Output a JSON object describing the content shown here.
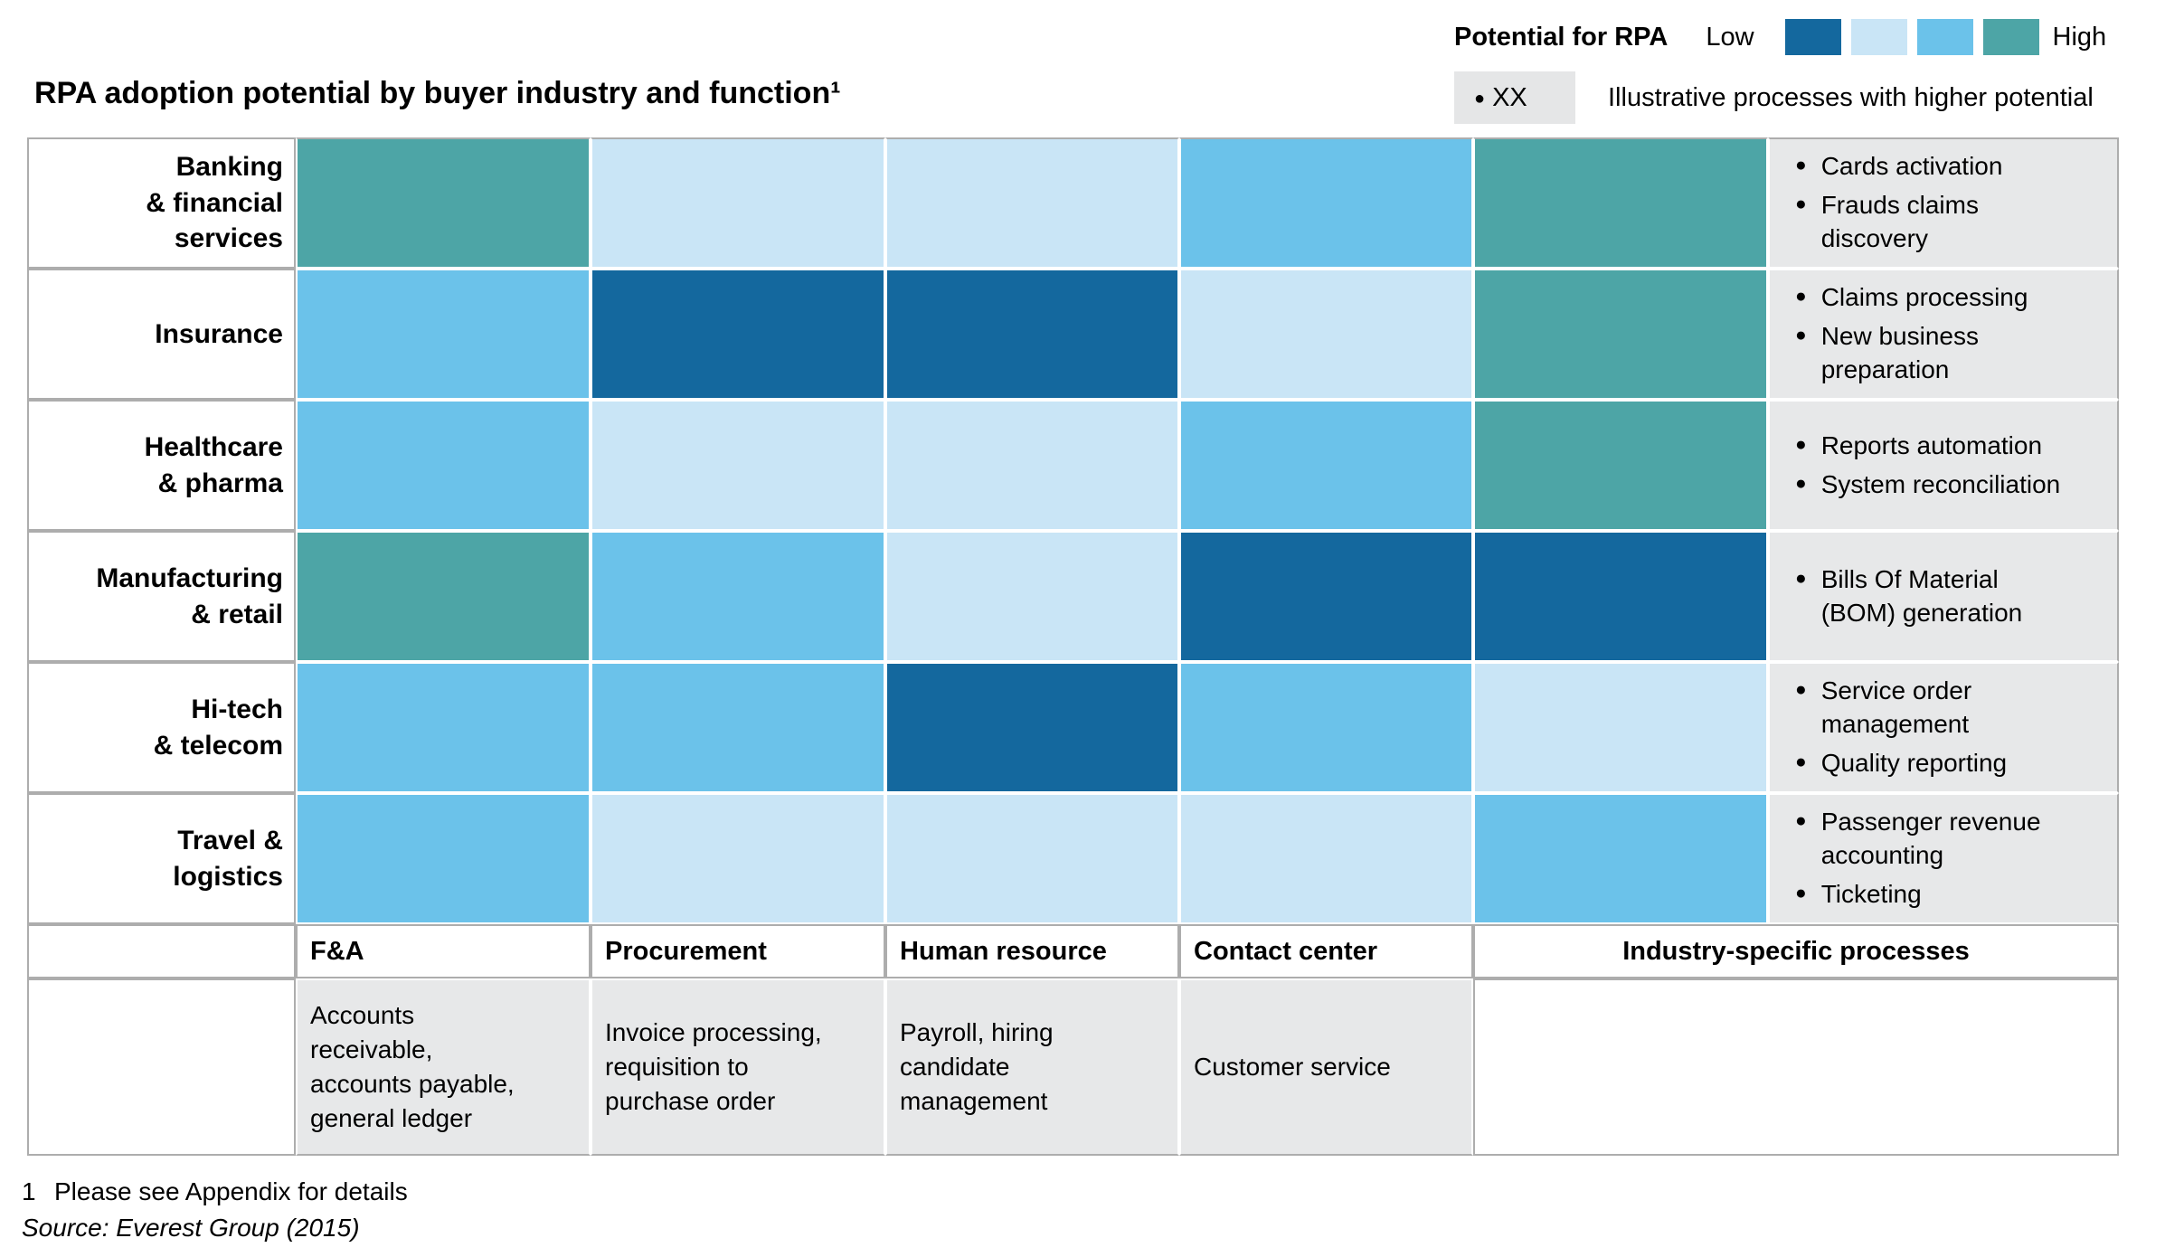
{
  "title": "RPA adoption potential by buyer industry and function¹",
  "legend": {
    "label": "Potential for RPA",
    "low_label": "Low",
    "high_label": "High",
    "colors": [
      "#14689E",
      "#C9E5F6",
      "#6BC2EA",
      "#4DA5A6"
    ],
    "marker_label": "XX",
    "marker_note": "Illustrative processes with higher potential"
  },
  "chart_data": {
    "type": "heatmap",
    "title": "RPA adoption potential by buyer industry and function",
    "rows": [
      "Banking & financial services",
      "Insurance",
      "Healthcare & pharma",
      "Manufacturing & retail",
      "Hi-tech & telecom",
      "Travel & logistics"
    ],
    "columns": [
      "F&A",
      "Procurement",
      "Human resource",
      "Contact center",
      "Industry-specific processes"
    ],
    "scale_note": "1 = Low potential for RPA (dark blue), 2 = pale blue, 3 = medium blue, 4 = High potential (teal)",
    "level_colors": {
      "1": "#14689E",
      "2": "#C9E5F6",
      "3": "#6BC2EA",
      "4": "#4DA5A6"
    },
    "values": [
      [
        4,
        2,
        2,
        3,
        4
      ],
      [
        3,
        1,
        1,
        2,
        4
      ],
      [
        3,
        2,
        2,
        3,
        4
      ],
      [
        4,
        3,
        2,
        1,
        1
      ],
      [
        3,
        3,
        1,
        3,
        2
      ],
      [
        3,
        2,
        2,
        2,
        3
      ]
    ],
    "row_annotations": [
      [
        "Cards activation",
        "Frauds claims discovery"
      ],
      [
        "Claims processing",
        "New business preparation"
      ],
      [
        "Reports automation",
        "System reconciliation"
      ],
      [
        "Bills Of Material (BOM) generation"
      ],
      [
        "Service order management",
        "Quality reporting"
      ],
      [
        "Passenger revenue accounting",
        "Ticketing"
      ]
    ],
    "legend_position": "top-right",
    "grid": "on"
  },
  "table": {
    "industries": [
      {
        "label": "Banking & financial services",
        "label_lines": [
          "Banking",
          "& financial",
          "services"
        ],
        "levels": [
          4,
          2,
          2,
          3,
          4
        ],
        "processes": [
          "Cards activation",
          "Frauds claims discovery"
        ]
      },
      {
        "label": "Insurance",
        "label_lines": [
          "Insurance"
        ],
        "levels": [
          3,
          1,
          1,
          2,
          4
        ],
        "processes": [
          "Claims processing",
          "New business preparation"
        ]
      },
      {
        "label": "Healthcare & pharma",
        "label_lines": [
          "Healthcare",
          "& pharma"
        ],
        "levels": [
          3,
          2,
          2,
          3,
          4
        ],
        "processes": [
          "Reports automation",
          "System reconciliation"
        ]
      },
      {
        "label": "Manufacturing & retail",
        "label_lines": [
          "Manufacturing",
          "& retail"
        ],
        "levels": [
          4,
          3,
          2,
          1,
          1
        ],
        "processes": [
          "Bills Of Material (BOM) generation"
        ]
      },
      {
        "label": "Hi-tech & telecom",
        "label_lines": [
          "Hi-tech",
          "& telecom"
        ],
        "levels": [
          3,
          3,
          1,
          3,
          2
        ],
        "processes": [
          "Service order management",
          "Quality reporting"
        ]
      },
      {
        "label": "Travel & logistics",
        "label_lines": [
          "Travel &",
          "logistics"
        ],
        "levels": [
          3,
          2,
          2,
          2,
          3
        ],
        "processes": [
          "Passenger revenue accounting",
          "Ticketing"
        ]
      }
    ],
    "footer": {
      "columns": [
        {
          "label": "F&A",
          "description": "Accounts receivable, accounts payable, general ledger"
        },
        {
          "label": "Procurement",
          "description": "Invoice processing, requisition to purchase order"
        },
        {
          "label": "Human resource",
          "description": "Payroll, hiring candidate management"
        },
        {
          "label": "Contact center",
          "description": "Customer service"
        },
        {
          "label": "Industry-specific processes",
          "description": ""
        }
      ]
    }
  },
  "footnote": {
    "marker": "1",
    "text": "Please see Appendix for details"
  },
  "source": "Source: Everest Group (2015)"
}
